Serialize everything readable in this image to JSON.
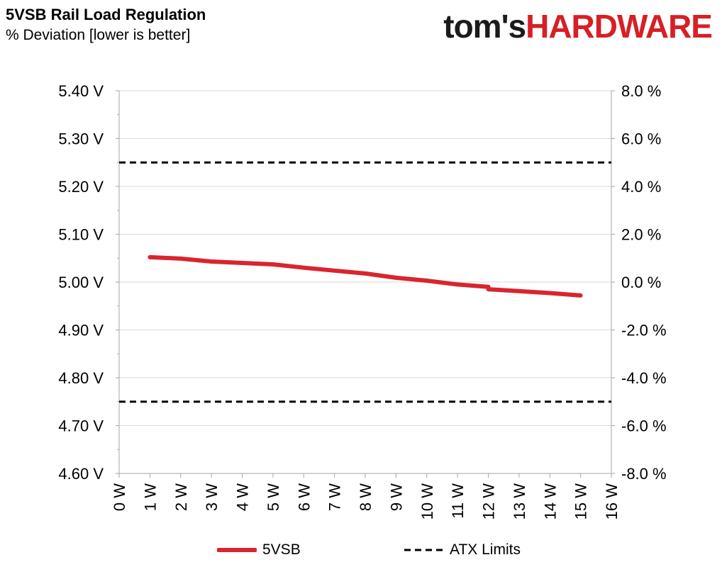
{
  "header": {
    "title": "5VSB Rail Load Regulation",
    "subtitle": "% Deviation [lower is better]",
    "brand_left": "tom's",
    "brand_right": "HARDWARE"
  },
  "colors": {
    "series": "#d9252e",
    "limits": "#000000",
    "grid": "#d9d9d9",
    "axis": "#a6a6a6",
    "brand_red": "#d71f26"
  },
  "chart_data": {
    "type": "line",
    "x": [
      1,
      2,
      3,
      4,
      5,
      6,
      7,
      8,
      9,
      10,
      11,
      12,
      12,
      13,
      14,
      15
    ],
    "series": [
      {
        "name": "5VSB",
        "values": [
          5.052,
          5.049,
          5.043,
          5.04,
          5.037,
          5.03,
          5.024,
          5.018,
          5.009,
          5.003,
          4.995,
          4.99,
          4.985,
          4.981,
          4.977,
          4.972
        ]
      }
    ],
    "limits": {
      "name": "ATX Limits",
      "values": [
        5.25,
        4.75
      ]
    },
    "xlim": [
      0,
      16
    ],
    "ylim": [
      4.6,
      5.4
    ],
    "y2lim": [
      -8,
      8
    ],
    "x_tick_labels": [
      "0 W",
      "1 W",
      "2 W",
      "3 W",
      "4 W",
      "5 W",
      "6 W",
      "7 W",
      "8 W",
      "9 W",
      "10 W",
      "11 W",
      "12 W",
      "13 W",
      "14 W",
      "15 W",
      "16 W"
    ],
    "y_tick_labels": [
      "5.40 V",
      "5.30 V",
      "5.20 V",
      "5.10 V",
      "5.00 V",
      "4.90 V",
      "4.80 V",
      "4.70 V",
      "4.60 V"
    ],
    "y2_tick_labels": [
      "8.0 %",
      "6.0 %",
      "4.0 %",
      "2.0 %",
      "0.0 %",
      "-2.0 %",
      "-4.0 %",
      "-6.0 %",
      "-8.0 %"
    ],
    "grid": true,
    "legend_position": "bottom"
  }
}
